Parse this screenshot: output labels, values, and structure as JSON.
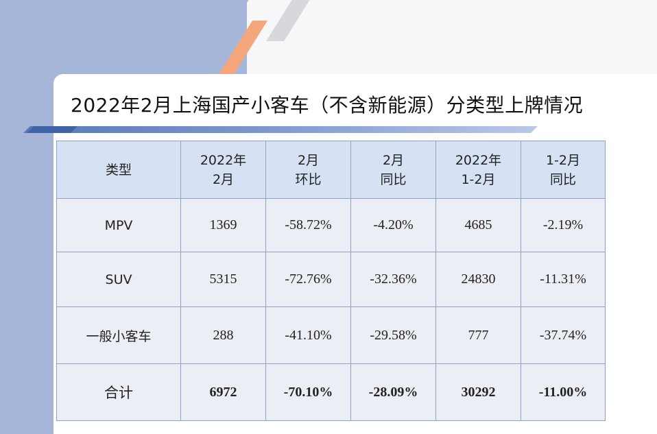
{
  "title": "2022年2月上海国产小客车（不含新能源）分类型上牌情况",
  "colors": {
    "header_bg": "#d6e2f3",
    "cell_bg": "#ebeef4",
    "accent_blue": "#4063a8",
    "accent_orange": "#f5a77b"
  },
  "table": {
    "headers": [
      [
        "类型"
      ],
      [
        "2022年",
        "2月"
      ],
      [
        "2月",
        "环比"
      ],
      [
        "2月",
        "同比"
      ],
      [
        "2022年",
        "1-2月"
      ],
      [
        "1-2月",
        "同比"
      ]
    ],
    "rows": [
      [
        "MPV",
        "1369",
        "-58.72%",
        "-4.20%",
        "4685",
        "-2.19%"
      ],
      [
        "SUV",
        "5315",
        "-72.76%",
        "-32.36%",
        "24830",
        "-11.31%"
      ],
      [
        "一般小客车",
        "288",
        "-41.10%",
        "-29.58%",
        "777",
        "-37.74%"
      ],
      [
        "合计",
        "6972",
        "-70.10%",
        "-28.09%",
        "30292",
        "-11.00%"
      ]
    ]
  }
}
